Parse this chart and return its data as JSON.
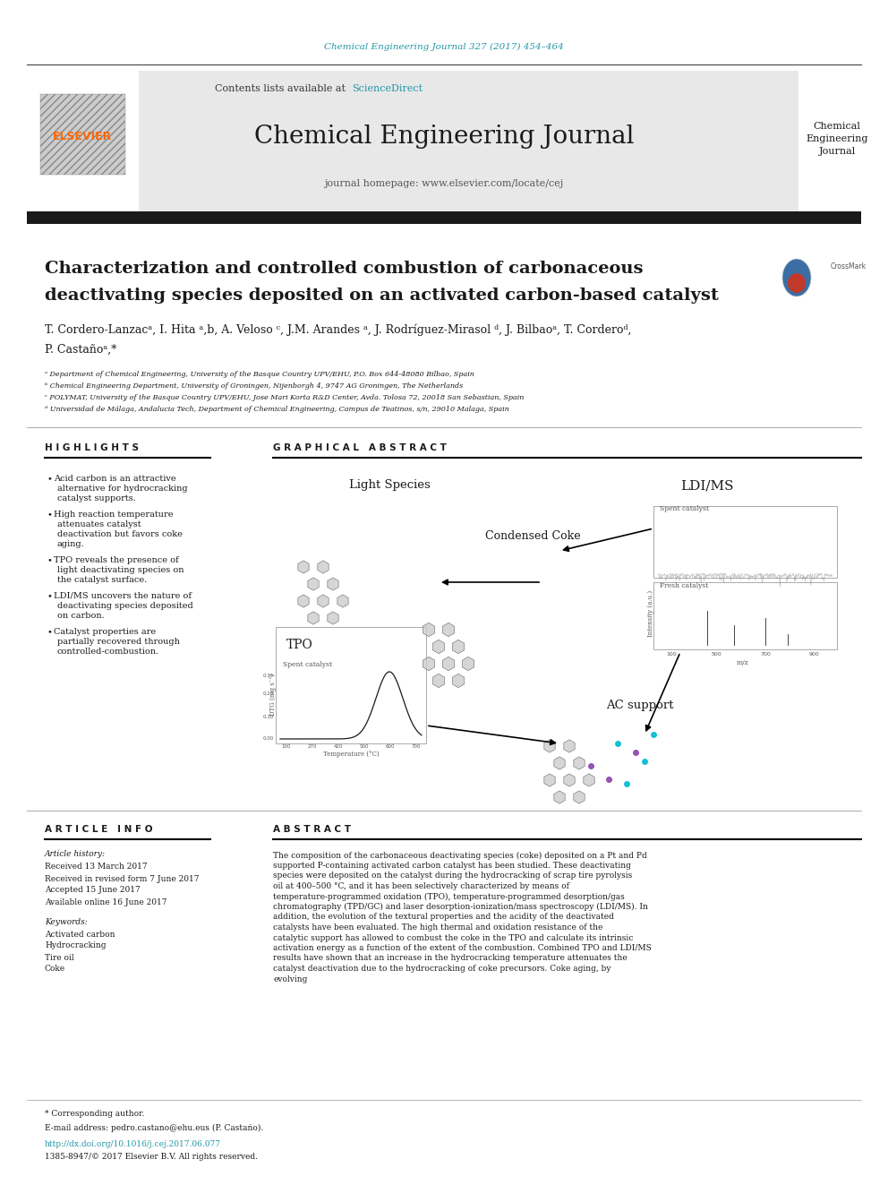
{
  "page_width": 9.92,
  "page_height": 13.23,
  "bg_color": "#ffffff",
  "journal_ref_text": "Chemical Engineering Journal 327 (2017) 454–464",
  "journal_ref_color": "#2196A6",
  "header_bg": "#e8e8e8",
  "contents_text": "Contents lists available at ",
  "sciencedirect_text": "ScienceDirect",
  "sciencedirect_color": "#2196A6",
  "journal_name": "Chemical Engineering Journal",
  "journal_homepage": "journal homepage: www.elsevier.com/locate/cej",
  "elsevier_color": "#FF6600",
  "thick_bar_color": "#1a1a1a",
  "title_line1": "Characterization and controlled combustion of carbonaceous",
  "title_line2": "deactivating species deposited on an activated carbon-based catalyst",
  "authors": "T. Cordero-Lanzacᵃ, I. Hita ᵃ,b, A. Veloso ᶜ, J.M. Arandes ᵃ, J. Rodríguez-Mirasol ᵈ, J. Bilbaoᵃ, T. Corderoᵈ,",
  "authors2": "P. Castañoᵃ,*",
  "affil_a": "ᵃ Department of Chemical Engineering, University of the Basque Country UPV/EHU, P.O. Box 644-48080 Bilbao, Spain",
  "affil_b": "ᵇ Chemical Engineering Department, University of Groningen, Nijenborgh 4, 9747 AG Groningen, The Netherlands",
  "affil_c": "ᶜ POLYMAT, University of the Basque Country UPV/EHU, Jose Mari Korta R&D Center, Avda. Tolosa 72, 20018 San Sebastian, Spain",
  "affil_d": "ᵈ Universidad de Málaga, Andalucia Tech, Department of Chemical Engineering, Campus de Teatinos, s/n, 29010 Malaga, Spain",
  "highlights_title": "H I G H L I G H T S",
  "highlights": [
    "Acid carbon is an attractive alternative for hydrocracking catalyst supports.",
    "High reaction temperature attenuates catalyst deactivation but favors coke aging.",
    "TPO reveals the presence of light deactivating species on the catalyst surface.",
    "LDI/MS uncovers the nature of deactivating species deposited on carbon.",
    "Catalyst properties are partially recovered through controlled-combustion."
  ],
  "graphical_abstract_title": "G R A P H I C A L   A B S T R A C T",
  "article_info_title": "A R T I C L E   I N F O",
  "article_history_label": "Article history:",
  "received": "Received 13 March 2017",
  "revised": "Received in revised form 7 June 2017",
  "accepted": "Accepted 15 June 2017",
  "available": "Available online 16 June 2017",
  "keywords_label": "Keywords:",
  "keywords": [
    "Activated carbon",
    "Hydrocracking",
    "Tire oil",
    "Coke"
  ],
  "abstract_title": "A B S T R A C T",
  "abstract_text": "The composition of the carbonaceous deactivating species (coke) deposited on a Pt and Pd supported P-containing activated carbon catalyst has been studied. These deactivating species were deposited on the catalyst during the hydrocracking of scrap tire pyrolysis oil at 400–500 °C, and it has been selectively characterized by means of temperature-programmed oxidation (TPO), temperature-programmed desorption/gas chromatography (TPD/GC) and laser desorption-ionization/mass spectroscopy (LDI/MS). In addition, the evolution of the textural properties and the acidity of the deactivated catalysts have been evaluated. The high thermal and oxidation resistance of the catalytic support has allowed to combust the coke in the TPO and calculate its intrinsic activation energy as a function of the extent of the combustion. Combined TPO and LDI/MS results have shown that an increase in the hydrocracking temperature attenuates the catalyst deactivation due to the hydrocracking of coke precursors. Coke aging, by evolving",
  "footnote_corresponding": "* Corresponding author.",
  "footnote_email": "E-mail address: pedro.castano@ehu.eus (P. Castaño).",
  "footnote_doi": "http://dx.doi.org/10.1016/j.cej.2017.06.077",
  "footnote_issn": "1385-8947/© 2017 Elsevier B.V. All rights reserved.",
  "label_light_species": "Light Species",
  "label_condensed_coke": "Condensed Coke",
  "label_tpo": "TPO",
  "label_ldi_ms": "LDI/MS",
  "label_ac_support": "AC support",
  "section_divider_color": "#000000"
}
